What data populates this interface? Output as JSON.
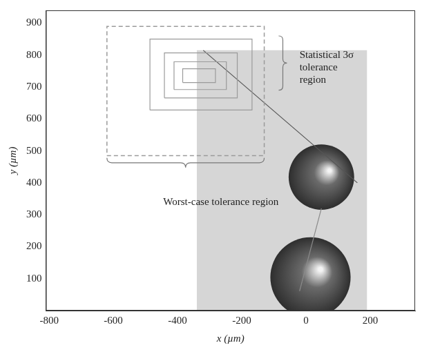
{
  "chart_data": {
    "type": "scatter",
    "x_label": "x (µm)",
    "y_label": "y (µm)",
    "xlim": [
      -810,
      340
    ],
    "xticks": [
      -800,
      -600,
      -400,
      -200,
      0,
      200
    ],
    "ylim": [
      0,
      940
    ],
    "yticks": [
      100,
      200,
      300,
      400,
      500,
      600,
      700,
      800,
      900
    ],
    "grid": false,
    "series": [
      {
        "type": "area",
        "color": "#d6d6d6",
        "x": [
          -340,
          190,
          190,
          -340,
          -340
        ],
        "y": [
          0,
          0,
          815,
          815,
          0
        ]
      },
      {
        "type": "line",
        "line_style": "dashed",
        "color": "#9a9a9a",
        "x": [
          -620,
          -130,
          -130,
          -620,
          -620
        ],
        "y": [
          485,
          485,
          890,
          890,
          485
        ]
      },
      {
        "type": "line",
        "line_style": "solid",
        "color": "#9a9a9a",
        "x": [
          -486,
          -168,
          -168,
          -486,
          -486
        ],
        "y": [
          628,
          628,
          850,
          850,
          628
        ]
      },
      {
        "type": "line",
        "line_style": "solid",
        "color": "#9a9a9a",
        "x": [
          -441,
          -214,
          -214,
          -441,
          -441
        ],
        "y": [
          666,
          666,
          807,
          807,
          666
        ]
      },
      {
        "type": "line",
        "line_style": "solid",
        "color": "#9a9a9a",
        "x": [
          -411,
          -248,
          -248,
          -411,
          -411
        ],
        "y": [
          692,
          692,
          779,
          779,
          692
        ]
      },
      {
        "type": "line",
        "line_style": "solid",
        "color": "#9a9a9a",
        "x": [
          -384,
          -282,
          -282,
          -384,
          -384
        ],
        "y": [
          714,
          714,
          757,
          757,
          714
        ]
      },
      {
        "type": "line",
        "line_style": "solid",
        "color": "#555555",
        "x": [
          -320,
          160
        ],
        "y": [
          815,
          400
        ]
      },
      {
        "type": "line",
        "line_style": "solid",
        "color": "#8a8a8a",
        "x": [
          48,
          -20
        ],
        "y": [
          320,
          61
        ]
      }
    ],
    "spheres": [
      {
        "x": 48,
        "y": 418,
        "r": 102,
        "color": "#6a6a6a"
      },
      {
        "x": 14,
        "y": 104,
        "r": 125,
        "color": "#6a6a6a"
      }
    ],
    "annotations": [
      {
        "text": "Statistical 3σ tolerance region",
        "x": -20,
        "y": 815
      },
      {
        "text": "Worst-case tolerance region",
        "x": -265,
        "y": 340
      }
    ]
  }
}
